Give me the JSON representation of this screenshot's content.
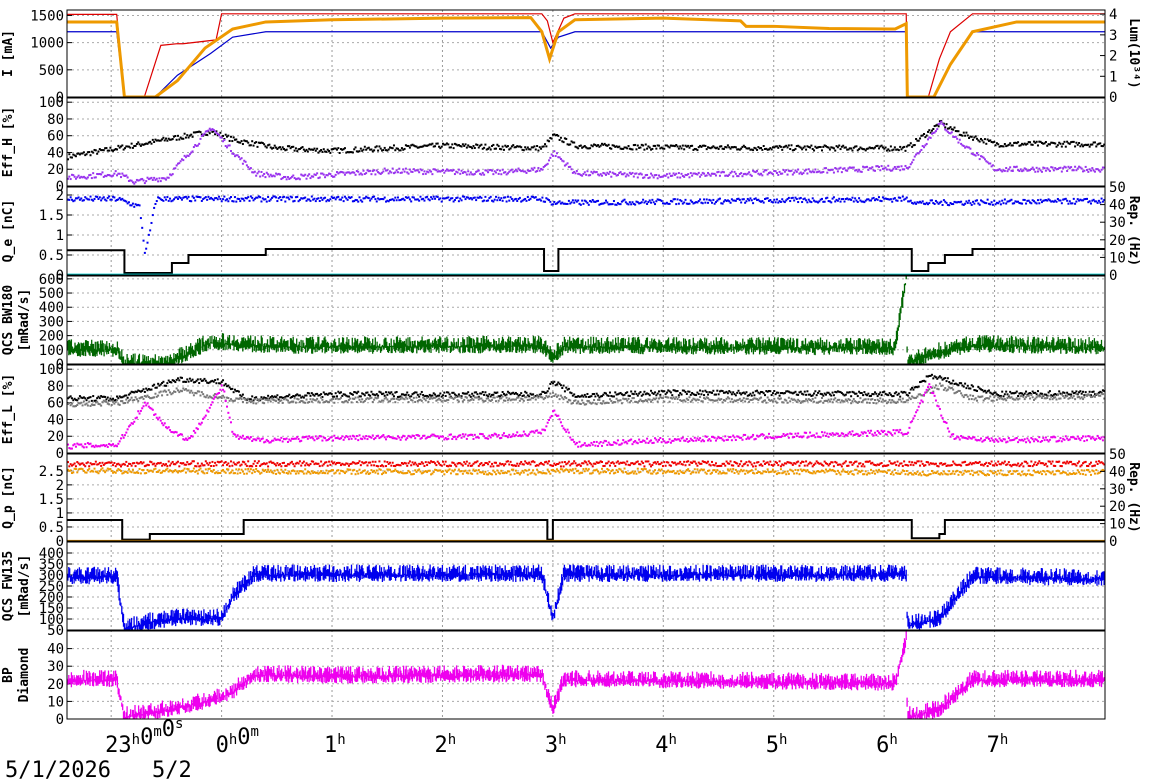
{
  "chart_data": {
    "type": "line",
    "x_axis": {
      "tick_labels": [
        {
          "main": "23",
          "sup": "h",
          "extra": "0",
          "extra_sup": "m",
          "extra2": "0",
          "extra2_sup": "s"
        },
        {
          "main": "0",
          "sup": "h",
          "extra": "0",
          "extra_sup": "m",
          "extra2": "",
          "extra2_sup": ""
        },
        {
          "main": "1",
          "sup": "h"
        },
        {
          "main": "2",
          "sup": "h"
        },
        {
          "main": "3",
          "sup": "h"
        },
        {
          "main": "4",
          "sup": "h"
        },
        {
          "main": "5",
          "sup": "h"
        },
        {
          "main": "6",
          "sup": "h"
        },
        {
          "main": "7",
          "sup": "h"
        }
      ],
      "tick_hours": [
        23,
        24,
        25,
        26,
        27,
        28,
        29,
        30,
        31
      ],
      "range_hours": [
        22.6,
        32.0
      ],
      "date_start": "5/1/2026",
      "date_next": "5/2",
      "grid": true
    },
    "panels": [
      {
        "id": "beam-current",
        "ylabel": "I [mA]",
        "ylim": [
          0,
          1600
        ],
        "yticks": [
          "0",
          "500",
          "1000",
          "1500"
        ],
        "ytick_values": [
          0,
          500,
          1000,
          1500
        ],
        "y2label": "Lum(10³⁴)",
        "y2lim": [
          0,
          4.2
        ],
        "y2ticks": [
          "0",
          "1",
          "2",
          "3",
          "4"
        ],
        "series": [
          {
            "color": "#dd0000",
            "kind": "line",
            "x": [
              22.6,
              23.05,
              23.12,
              23.3,
              23.45,
              23.6,
              23.65,
              23.95,
              24.0,
              24.4,
              24.5,
              26.9,
              26.95,
              27.0,
              27.1,
              27.2,
              30.2,
              30.21,
              30.4,
              30.5,
              30.6,
              30.8,
              32.0
            ],
            "y": [
              1520,
              1520,
              0,
              0,
              950,
              980,
              980,
              1050,
              1530,
              1530,
              1530,
              1530,
              1400,
              1000,
              1450,
              1530,
              1530,
              0,
              0,
              700,
              1200,
              1530,
              1530
            ]
          },
          {
            "color": "#0000cc",
            "kind": "line",
            "x": [
              22.6,
              23.05,
              23.12,
              23.4,
              23.6,
              23.9,
              24.1,
              24.4,
              26.9,
              26.98,
              27.05,
              27.2,
              30.2,
              30.21,
              30.45,
              30.6,
              30.8,
              32.0
            ],
            "y": [
              1200,
              1200,
              0,
              0,
              400,
              800,
              1100,
              1200,
              1200,
              900,
              1100,
              1200,
              1200,
              0,
              0,
              600,
              1200,
              1200
            ]
          },
          {
            "color": "#ee9900",
            "kind": "thick",
            "x": [
              22.6,
              23.05,
              23.12,
              23.4,
              23.6,
              23.85,
              24.1,
              24.4,
              25.0,
              26.0,
              26.8,
              26.9,
              26.97,
              27.05,
              27.2,
              28.0,
              28.7,
              28.75,
              29.0,
              29.5,
              30.1,
              30.2,
              30.21,
              30.45,
              30.6,
              30.8,
              31.2,
              32.0
            ],
            "y": [
              1380,
              1380,
              0,
              0,
              300,
              900,
              1250,
              1380,
              1420,
              1450,
              1460,
              1200,
              700,
              1200,
              1420,
              1450,
              1400,
              1300,
              1300,
              1260,
              1250,
              1350,
              0,
              0,
              600,
              1200,
              1380,
              1380
            ]
          }
        ]
      },
      {
        "id": "eff-h",
        "ylabel": "Eff_H [%]",
        "ylim": [
          0,
          105
        ],
        "yticks": [
          "0",
          "20",
          "40",
          "60",
          "80",
          "100"
        ],
        "ytick_values": [
          0,
          20,
          40,
          60,
          80,
          100
        ],
        "series": [
          {
            "color": "#000000",
            "kind": "dots",
            "x": [
              22.6,
              23.05,
              23.9,
              24.1,
              24.5,
              25.0,
              26.0,
              26.9,
              27.0,
              27.2,
              28.0,
              30.2,
              30.5,
              30.7,
              31.0,
              32.0
            ],
            "y": [
              35,
              45,
              65,
              55,
              45,
              42,
              48,
              45,
              60,
              48,
              46,
              45,
              75,
              62,
              50,
              50
            ]
          },
          {
            "color": "#9933ee",
            "kind": "dots",
            "x": [
              22.6,
              23.05,
              23.2,
              23.5,
              23.9,
              24.1,
              24.3,
              24.6,
              25.5,
              26.5,
              26.9,
              27.0,
              27.2,
              28.0,
              29.0,
              30.2,
              30.5,
              30.7,
              31.0,
              32.0
            ],
            "y": [
              10,
              15,
              5,
              10,
              70,
              40,
              15,
              10,
              18,
              16,
              20,
              40,
              15,
              12,
              16,
              22,
              75,
              50,
              20,
              20
            ]
          }
        ]
      },
      {
        "id": "qe",
        "ylabel": "Q_e [nC]",
        "ylim": [
          0,
          2.2
        ],
        "yticks": [
          "0",
          "0.5",
          "1",
          "1.5",
          "2"
        ],
        "ytick_values": [
          0,
          0.5,
          1,
          1.5,
          2
        ],
        "y2label": "Rep. (Hz)",
        "y2lim": [
          0,
          50
        ],
        "y2ticks": [
          "0",
          "10",
          "20",
          "30",
          "40",
          "50"
        ],
        "series": [
          {
            "color": "#0000ee",
            "kind": "dots",
            "x": [
              22.6,
              23.05,
              23.25,
              23.3,
              23.4,
              23.9,
              26.9,
              27.0,
              30.2,
              30.3,
              32.0
            ],
            "y": [
              1.9,
              1.9,
              1.7,
              0.5,
              1.9,
              1.9,
              1.9,
              1.8,
              1.9,
              1.8,
              1.85
            ]
          },
          {
            "color": "#000000",
            "kind": "step",
            "x": [
              22.6,
              23.05,
              23.12,
              23.5,
              23.55,
              23.7,
              24.4,
              26.9,
              26.92,
              27.0,
              27.05,
              30.2,
              30.25,
              30.4,
              30.55,
              30.8,
              32.0
            ],
            "y": [
              0.62,
              0.62,
              0.05,
              0.05,
              0.3,
              0.5,
              0.65,
              0.65,
              0.1,
              0.1,
              0.65,
              0.65,
              0.1,
              0.3,
              0.5,
              0.65,
              0.65
            ]
          },
          {
            "color": "#00cccc",
            "kind": "line",
            "x": [
              22.6,
              32.0
            ],
            "y": [
              0.02,
              0.02
            ]
          }
        ]
      },
      {
        "id": "qcs-bw180",
        "ylabel": "QCS BW180",
        "ylabel2": "[mRad/s]",
        "ylim": [
          0,
          620
        ],
        "yticks": [
          "0",
          "100",
          "200",
          "300",
          "400",
          "500",
          "600"
        ],
        "ytick_values": [
          0,
          100,
          200,
          300,
          400,
          500,
          600
        ],
        "series": [
          {
            "color": "#006600",
            "kind": "noise",
            "x": [
              22.6,
              23.05,
              23.12,
              23.5,
              23.9,
              24.5,
              26.9,
              27.0,
              27.1,
              30.1,
              30.2,
              30.21,
              30.5,
              30.8,
              32.0
            ],
            "y": [
              100,
              100,
              0,
              0,
              150,
              120,
              125,
              40,
              120,
              110,
              600,
              0,
              80,
              130,
              115
            ]
          }
        ]
      },
      {
        "id": "eff-l",
        "ylabel": "Eff_L [%]",
        "ylim": [
          0,
          105
        ],
        "yticks": [
          "0",
          "20",
          "40",
          "60",
          "80",
          "100"
        ],
        "ytick_values": [
          0,
          20,
          40,
          60,
          80,
          100
        ],
        "series": [
          {
            "color": "#000000",
            "kind": "dots",
            "x": [
              22.6,
              23.05,
              23.6,
              24.0,
              24.2,
              25.0,
              26.9,
              27.0,
              27.2,
              28.0,
              30.2,
              30.4,
              30.6,
              31.0,
              32.0
            ],
            "y": [
              65,
              65,
              88,
              85,
              65,
              70,
              70,
              85,
              68,
              72,
              70,
              92,
              85,
              70,
              72
            ]
          },
          {
            "color": "#777777",
            "kind": "dots",
            "x": [
              22.6,
              23.05,
              23.6,
              24.2,
              25.0,
              26.9,
              27.0,
              27.2,
              28.0,
              30.2,
              30.5,
              30.8,
              32.0
            ],
            "y": [
              58,
              60,
              75,
              62,
              63,
              65,
              70,
              60,
              64,
              62,
              80,
              65,
              68
            ]
          },
          {
            "color": "#ee00ee",
            "kind": "dots",
            "x": [
              22.6,
              23.05,
              23.3,
              23.5,
              23.7,
              24.0,
              24.1,
              24.3,
              25.0,
              26.5,
              26.9,
              27.0,
              27.2,
              28.0,
              29.0,
              30.2,
              30.4,
              30.6,
              31.0,
              32.0
            ],
            "y": [
              8,
              10,
              60,
              30,
              15,
              80,
              20,
              15,
              18,
              20,
              25,
              50,
              10,
              15,
              20,
              25,
              80,
              20,
              15,
              18
            ]
          }
        ]
      },
      {
        "id": "qp",
        "ylabel": "Q_p [nC]",
        "ylim": [
          0,
          3.1
        ],
        "yticks": [
          "0",
          "0.5",
          "1",
          "1.5",
          "2",
          "2.5"
        ],
        "ytick_values": [
          0,
          0.5,
          1,
          1.5,
          2,
          2.5
        ],
        "y2label": "Rep. (Hz)",
        "y2lim": [
          0,
          50
        ],
        "y2ticks": [
          "0",
          "10",
          "20",
          "30",
          "40",
          "50"
        ],
        "series": [
          {
            "color": "#ee0000",
            "kind": "dots",
            "x": [
              22.6,
              23.05,
              23.15,
              26.9,
              27.0,
              30.2,
              30.3,
              32.0
            ],
            "y": [
              2.75,
              2.75,
              2.75,
              2.75,
              2.75,
              2.75,
              2.75,
              2.75
            ]
          },
          {
            "color": "#ee9900",
            "kind": "dots",
            "x": [
              22.6,
              23.05,
              23.15,
              26.9,
              27.0,
              30.2,
              30.3,
              32.0
            ],
            "y": [
              2.5,
              2.5,
              2.5,
              2.45,
              2.5,
              2.45,
              2.4,
              2.45
            ]
          },
          {
            "color": "#000000",
            "kind": "step",
            "x": [
              22.6,
              23.05,
              23.1,
              23.3,
              23.35,
              23.8,
              24.2,
              26.9,
              26.95,
              27.0,
              30.2,
              30.25,
              30.5,
              30.55,
              32.0
            ],
            "y": [
              0.75,
              0.75,
              0.05,
              0.05,
              0.25,
              0.25,
              0.75,
              0.75,
              0.05,
              0.75,
              0.75,
              0.1,
              0.25,
              0.75,
              0.75
            ]
          },
          {
            "color": "#ee9900",
            "kind": "line",
            "x": [
              22.6,
              32.0
            ],
            "y": [
              0.02,
              0.02
            ]
          }
        ]
      },
      {
        "id": "qcs-fw135",
        "ylabel": "QCS FW135",
        "ylabel2": "[mRad/s]",
        "ylim": [
          50,
          450
        ],
        "yticks": [
          "50",
          "100",
          "150",
          "200",
          "250",
          "300",
          "350",
          "400"
        ],
        "ytick_values": [
          50,
          100,
          150,
          200,
          250,
          300,
          350,
          400
        ],
        "series": [
          {
            "color": "#0000ee",
            "kind": "noise",
            "x": [
              22.6,
              23.05,
              23.12,
              23.3,
              23.6,
              24.0,
              24.1,
              24.3,
              25.0,
              26.9,
              27.0,
              27.1,
              30.1,
              30.2,
              30.21,
              30.5,
              30.8,
              32.0
            ],
            "y": [
              290,
              290,
              50,
              80,
              100,
              100,
              200,
              300,
              300,
              300,
              100,
              300,
              300,
              300,
              70,
              100,
              290,
              280
            ]
          }
        ]
      },
      {
        "id": "bp-diamond",
        "ylabel": "BP",
        "ylabel2": "Diamond",
        "ylim": [
          0,
          50
        ],
        "yticks": [
          "0",
          "10",
          "20",
          "30",
          "40"
        ],
        "ytick_values": [
          0,
          10,
          20,
          30,
          40
        ],
        "series": [
          {
            "color": "#ee00ee",
            "kind": "noise",
            "x": [
              22.6,
              23.05,
              23.12,
              23.5,
              23.9,
              24.1,
              24.3,
              25.0,
              26.9,
              27.0,
              27.1,
              30.1,
              30.2,
              30.21,
              30.5,
              30.8,
              32.0
            ],
            "y": [
              22,
              22,
              1,
              5,
              10,
              15,
              25,
              24,
              25,
              5,
              22,
              20,
              45,
              1,
              5,
              22,
              22
            ]
          }
        ]
      }
    ]
  }
}
